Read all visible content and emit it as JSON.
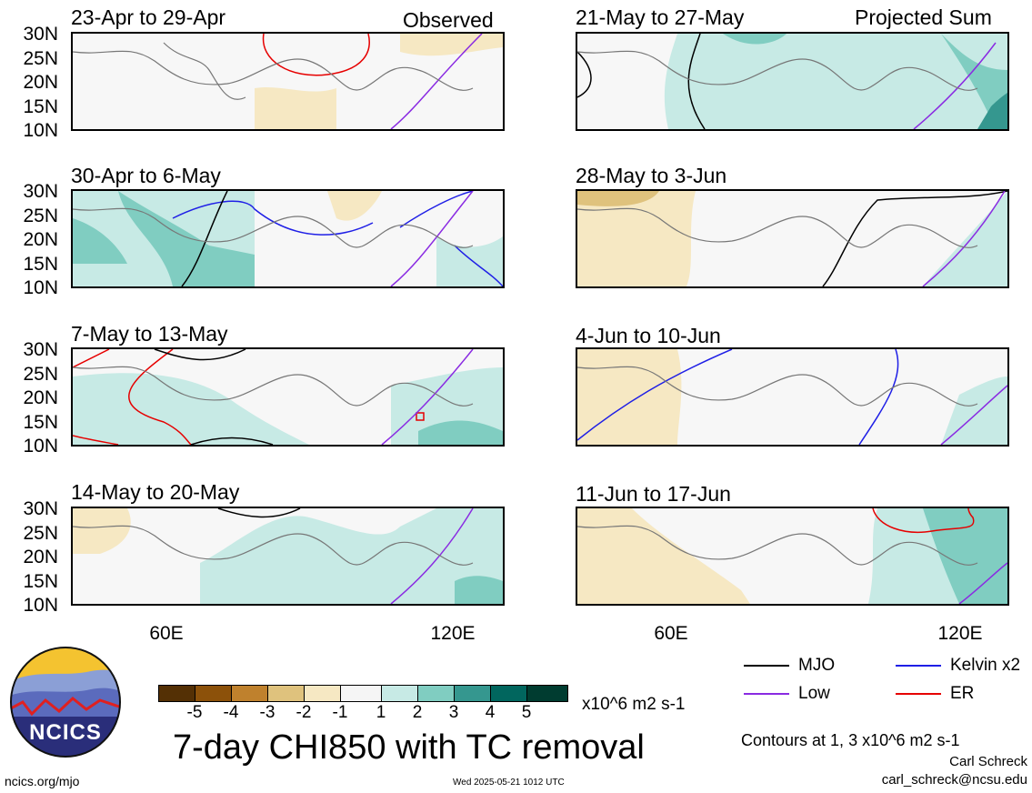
{
  "left_panels": [
    {
      "title": "23-Apr to 29-Apr",
      "tag": "Observed"
    },
    {
      "title": "30-Apr to 6-May",
      "tag": ""
    },
    {
      "title": "7-May to 13-May",
      "tag": ""
    },
    {
      "title": "14-May to 20-May",
      "tag": ""
    }
  ],
  "right_panels": [
    {
      "title": "21-May to 27-May",
      "tag": "Projected Sum"
    },
    {
      "title": "28-May to 3-Jun",
      "tag": ""
    },
    {
      "title": "4-Jun to 10-Jun",
      "tag": ""
    },
    {
      "title": "11-Jun to 17-Jun",
      "tag": ""
    }
  ],
  "lat_labels": [
    "30N",
    "25N",
    "20N",
    "15N",
    "10N"
  ],
  "lon_labels": [
    "60E",
    "120E"
  ],
  "legend": {
    "mjo": "MJO",
    "kelvin": "Kelvin x2",
    "low": "Low",
    "er": "ER",
    "colors": {
      "mjo": "#000000",
      "kelvin": "#1f1fe6",
      "low": "#8a2be2",
      "er": "#e60000"
    }
  },
  "colorbar": {
    "ticks": [
      "-5",
      "-4",
      "-3",
      "-2",
      "-1",
      "1",
      "2",
      "3",
      "4",
      "5"
    ],
    "units": "x10^6 m2 s-1",
    "colors": [
      "#543005",
      "#8c510a",
      "#bf812d",
      "#dfc27d",
      "#f6e8c3",
      "#f5f5f5",
      "#c7eae5",
      "#80cdc1",
      "#35978f",
      "#01665e",
      "#003c30"
    ]
  },
  "logo": {
    "text": "NCICS"
  },
  "main_title": "7-day CHI850 with TC removal",
  "contour_note": "Contours at 1, 3 x10^6 m2 s-1",
  "author": "Carl Schreck",
  "email": "carl_schreck@ncsu.edu",
  "site": "ncics.org/mjo",
  "timestamp": "Wed 2025-05-21 1012 UTC"
}
